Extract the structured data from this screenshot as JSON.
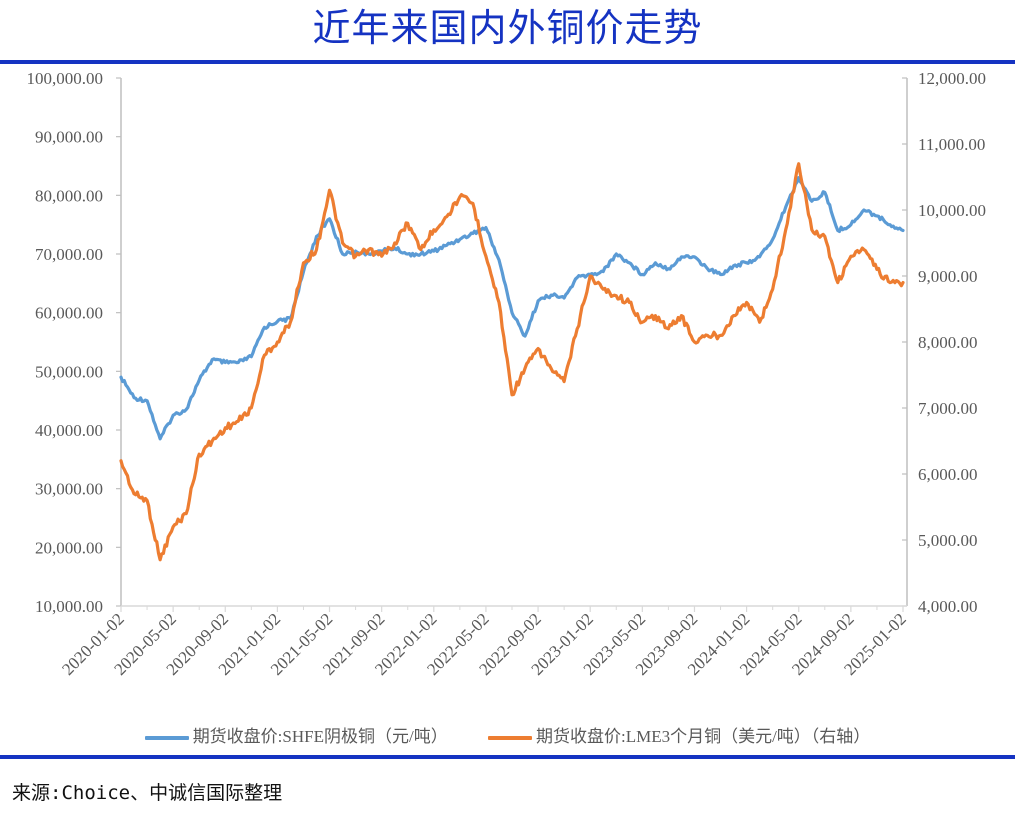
{
  "header": {
    "title": "近年来国内外铜价走势"
  },
  "legend": {
    "items": [
      {
        "label": "期货收盘价:SHFE阴极铜（元/吨）",
        "color": "#5b9bd5"
      },
      {
        "label": "期货收盘价:LME3个月铜（美元/吨）（右轴）",
        "color": "#ed7d31"
      }
    ]
  },
  "footer": {
    "source": "来源:Choice、中诚信国际整理"
  },
  "colors": {
    "accent": "#1533c2",
    "series_left": "#5b9bd5",
    "series_right": "#ed7d31",
    "axis": "#bfbfbf",
    "tick_text": "#595959"
  },
  "chart_data": {
    "type": "line",
    "title": "近年来国内外铜价走势",
    "xlabel": "",
    "ylabel": "",
    "grid": false,
    "legend_position": "bottom",
    "x_tick_labels": [
      "2020-01-02",
      "2020-05-02",
      "2020-09-02",
      "2021-01-02",
      "2021-05-02",
      "2021-09-02",
      "2022-01-02",
      "2022-05-02",
      "2022-09-02",
      "2023-01-02",
      "2023-05-02",
      "2023-09-02",
      "2024-01-02",
      "2024-05-02",
      "2024-09-02",
      "2025-01-02"
    ],
    "y_left": {
      "range": [
        10000,
        100000
      ],
      "ticks": [
        "10,000.00",
        "20,000.00",
        "30,000.00",
        "40,000.00",
        "50,000.00",
        "60,000.00",
        "70,000.00",
        "80,000.00",
        "90,000.00",
        "100,000.00"
      ]
    },
    "y_right": {
      "range": [
        4000,
        12000
      ],
      "ticks": [
        "4,000.00",
        "5,000.00",
        "6,000.00",
        "7,000.00",
        "8,000.00",
        "9,000.00",
        "10,000.00",
        "11,000.00",
        "12,000.00"
      ]
    },
    "x": [
      "2020-01",
      "2020-02",
      "2020-03",
      "2020-04",
      "2020-05",
      "2020-06",
      "2020-07",
      "2020-08",
      "2020-09",
      "2020-10",
      "2020-11",
      "2020-12",
      "2021-01",
      "2021-02",
      "2021-03",
      "2021-04",
      "2021-05",
      "2021-06",
      "2021-07",
      "2021-08",
      "2021-09",
      "2021-10",
      "2021-11",
      "2021-12",
      "2022-01",
      "2022-02",
      "2022-03",
      "2022-04",
      "2022-05",
      "2022-06",
      "2022-07",
      "2022-08",
      "2022-09",
      "2022-10",
      "2022-11",
      "2022-12",
      "2023-01",
      "2023-02",
      "2023-03",
      "2023-04",
      "2023-05",
      "2023-06",
      "2023-07",
      "2023-08",
      "2023-09",
      "2023-10",
      "2023-11",
      "2023-12",
      "2024-01",
      "2024-02",
      "2024-03",
      "2024-04",
      "2024-05",
      "2024-06",
      "2024-07",
      "2024-08",
      "2024-09",
      "2024-10",
      "2024-11",
      "2024-12",
      "2025-01"
    ],
    "series": [
      {
        "name": "期货收盘价:SHFE阴极铜（元/吨）",
        "axis": "left",
        "color": "#5b9bd5",
        "values": [
          49000,
          45500,
          45000,
          38500,
          42500,
          43500,
          48500,
          52000,
          51500,
          51500,
          52500,
          57500,
          58500,
          59000,
          67000,
          73000,
          76000,
          70000,
          70500,
          70000,
          70500,
          71000,
          70000,
          70000,
          70500,
          71500,
          72500,
          73500,
          74500,
          69000,
          60000,
          56000,
          62000,
          63000,
          62500,
          66000,
          66500,
          67000,
          70000,
          68500,
          66500,
          68500,
          67500,
          69500,
          69500,
          67500,
          66500,
          68000,
          68500,
          69500,
          72500,
          78000,
          83000,
          79000,
          80500,
          74000,
          75000,
          77500,
          76500,
          75000,
          74000
        ]
      },
      {
        "name": "期货收盘价:LME3个月铜（美元/吨）（右轴）",
        "axis": "right",
        "color": "#ed7d31",
        "values": [
          6200,
          5700,
          5600,
          4700,
          5200,
          5400,
          6300,
          6500,
          6700,
          6800,
          7000,
          7800,
          8000,
          8300,
          9200,
          9400,
          10300,
          9500,
          9300,
          9400,
          9300,
          9500,
          9800,
          9400,
          9700,
          9900,
          10200,
          10100,
          9300,
          8600,
          7200,
          7600,
          7900,
          7600,
          7400,
          8200,
          9000,
          8800,
          8700,
          8600,
          8300,
          8400,
          8200,
          8400,
          8000,
          8100,
          8100,
          8400,
          8600,
          8300,
          8800,
          9700,
          10700,
          9700,
          9600,
          8900,
          9300,
          9400,
          9100,
          8900,
          8900
        ]
      }
    ]
  }
}
